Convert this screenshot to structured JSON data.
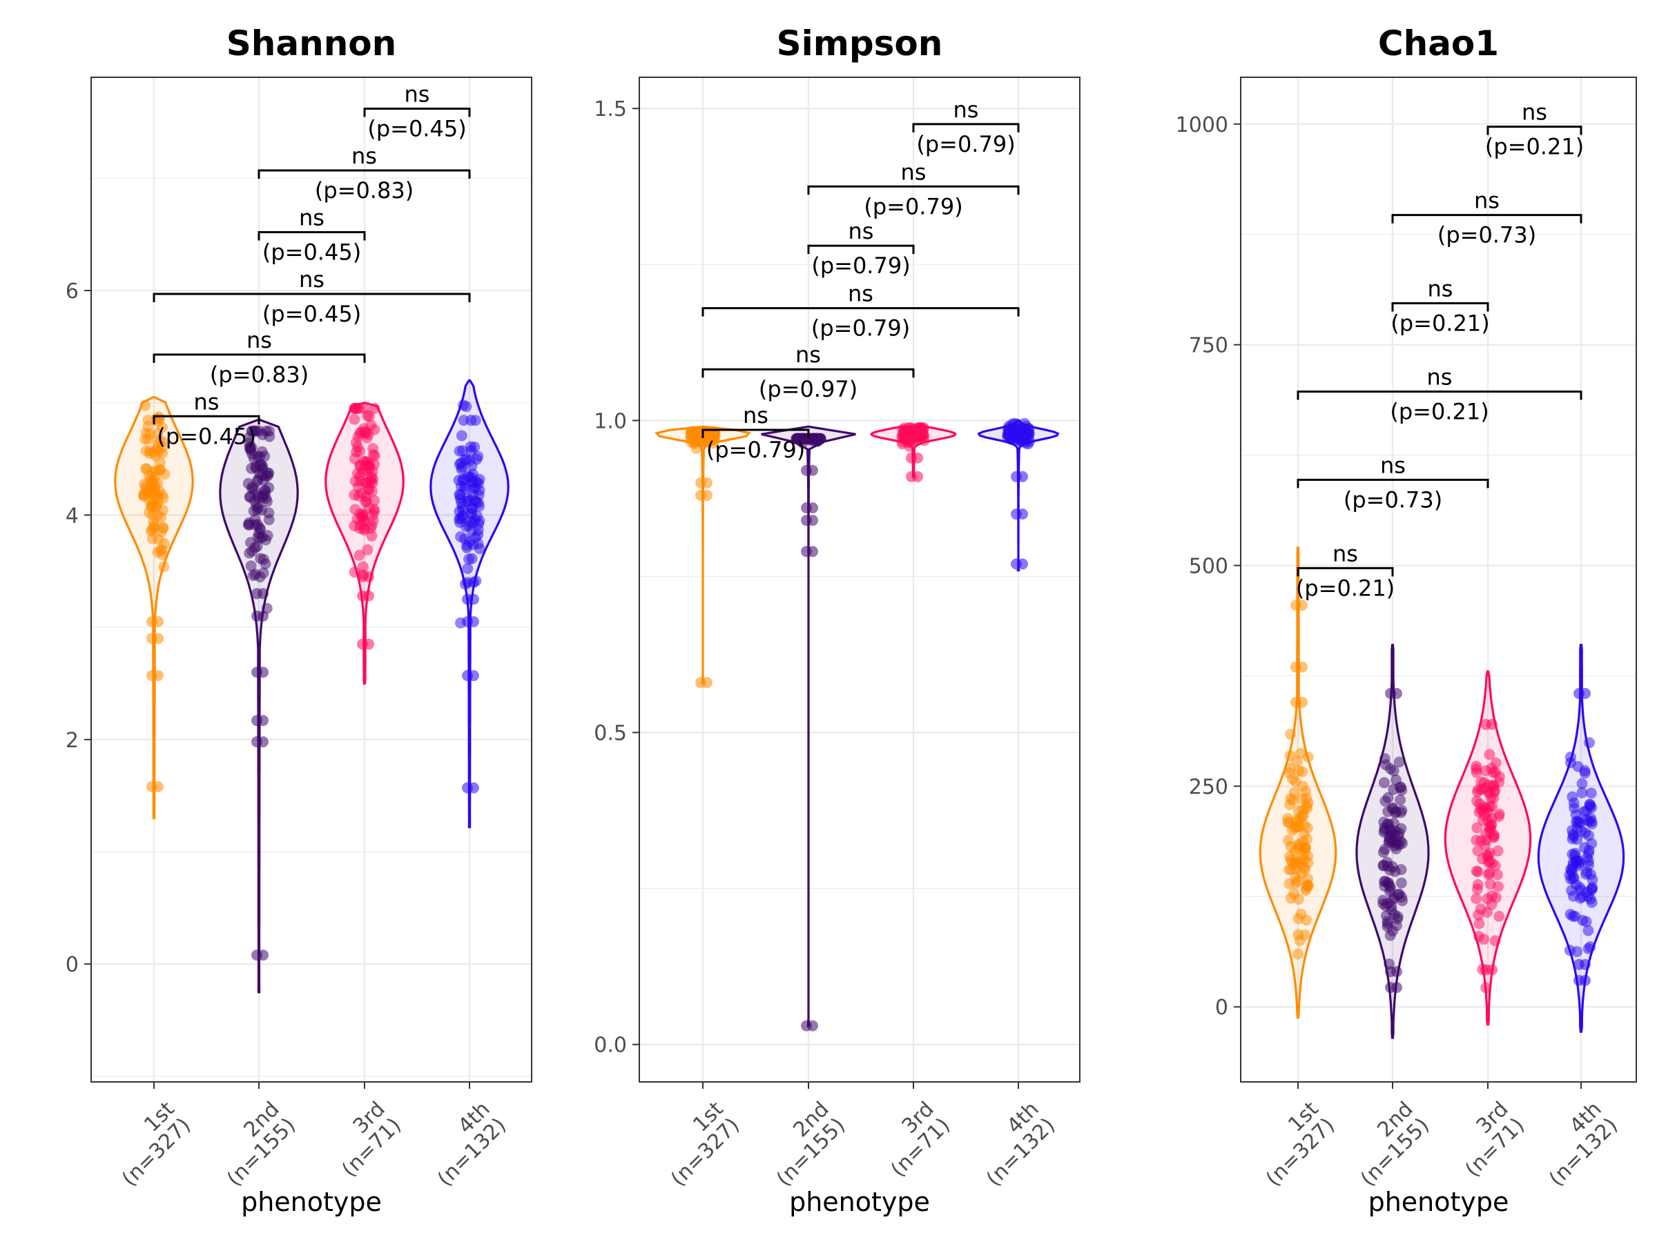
{
  "colors": {
    "1st (n=327)": "#FF8C00",
    "2nd (n=155)": "#3F0A6B",
    "3rd (n=71)": "#FF0A5A",
    "4th (n=132)": "#2A0AF0",
    "grid": "#EBEBEB",
    "border": "#333333"
  },
  "chart_data": [
    {
      "type": "violin",
      "title": "Shannon",
      "xlabel": "phenotype",
      "ylabel": "",
      "ylim": [
        -1.05,
        7.9
      ],
      "yticks": [
        0,
        2,
        4,
        6
      ],
      "categories": [
        {
          "line1": "1st",
          "line2": "(n=327)"
        },
        {
          "line1": "2nd",
          "line2": "(n=155)"
        },
        {
          "line1": "3rd",
          "line2": "(n=71)"
        },
        {
          "line1": "4th",
          "line2": "(n=132)"
        }
      ],
      "series": [
        {
          "min": 1.3,
          "max": 5.05,
          "center": 4.3,
          "spread": 0.45,
          "width": 0.37,
          "outliers": [
            1.58,
            2.57,
            2.9,
            3.05
          ]
        },
        {
          "min": -0.25,
          "max": 4.85,
          "center": 4.2,
          "spread": 0.5,
          "width": 0.37,
          "outliers": [
            0.08,
            1.98,
            2.17,
            2.6,
            3.1,
            3.3
          ]
        },
        {
          "min": 2.5,
          "max": 5.0,
          "center": 4.3,
          "spread": 0.45,
          "width": 0.37,
          "outliers": [
            2.85,
            3.28,
            3.45
          ]
        },
        {
          "min": 1.22,
          "max": 5.2,
          "center": 4.25,
          "spread": 0.42,
          "width": 0.37,
          "outliers": [
            1.57,
            2.57,
            3.05,
            3.25,
            3.4
          ]
        }
      ],
      "comparisons": [
        {
          "from": 0,
          "to": 1,
          "y": 4.88,
          "label": "ns",
          "p": "(p=0.45)"
        },
        {
          "from": 0,
          "to": 2,
          "y": 5.43,
          "label": "ns",
          "p": "(p=0.83)"
        },
        {
          "from": 0,
          "to": 3,
          "y": 5.97,
          "label": "ns",
          "p": "(p=0.45)"
        },
        {
          "from": 1,
          "to": 2,
          "y": 6.52,
          "label": "ns",
          "p": "(p=0.45)"
        },
        {
          "from": 1,
          "to": 3,
          "y": 7.07,
          "label": "ns",
          "p": "(p=0.83)"
        },
        {
          "from": 2,
          "to": 3,
          "y": 7.62,
          "label": "ns",
          "p": "(p=0.45)"
        }
      ]
    },
    {
      "type": "violin",
      "title": "Simpson",
      "xlabel": "phenotype",
      "ylabel": "",
      "ylim": [
        -0.06,
        1.55
      ],
      "yticks": [
        0.0,
        0.5,
        1.0,
        1.5
      ],
      "yticklabels": [
        "0.0",
        "0.5",
        "1.0",
        "1.5"
      ],
      "categories": [
        {
          "line1": "1st",
          "line2": "(n=327)"
        },
        {
          "line1": "2nd",
          "line2": "(n=155)"
        },
        {
          "line1": "3rd",
          "line2": "(n=71)"
        },
        {
          "line1": "4th",
          "line2": "(n=132)"
        }
      ],
      "series": [
        {
          "min": 0.58,
          "max": 0.99,
          "center": 0.978,
          "spread": 0.008,
          "width": 0.45,
          "outliers": [
            0.58,
            0.88,
            0.9
          ]
        },
        {
          "min": 0.03,
          "max": 0.99,
          "center": 0.978,
          "spread": 0.008,
          "width": 0.45,
          "outliers": [
            0.03,
            0.79,
            0.84,
            0.86,
            0.92
          ]
        },
        {
          "min": 0.91,
          "max": 0.99,
          "center": 0.978,
          "spread": 0.008,
          "width": 0.4,
          "outliers": [
            0.91,
            0.94
          ]
        },
        {
          "min": 0.76,
          "max": 1.0,
          "center": 0.978,
          "spread": 0.008,
          "width": 0.38,
          "outliers": [
            0.77,
            0.85,
            0.91
          ]
        }
      ],
      "comparisons": [
        {
          "from": 0,
          "to": 1,
          "y": 0.985,
          "label": "ns",
          "p": "(p=0.79)"
        },
        {
          "from": 0,
          "to": 2,
          "y": 1.082,
          "label": "ns",
          "p": "(p=0.97)"
        },
        {
          "from": 0,
          "to": 3,
          "y": 1.18,
          "label": "ns",
          "p": "(p=0.79)"
        },
        {
          "from": 1,
          "to": 2,
          "y": 1.28,
          "label": "ns",
          "p": "(p=0.79)"
        },
        {
          "from": 1,
          "to": 3,
          "y": 1.375,
          "label": "ns",
          "p": "(p=0.79)"
        },
        {
          "from": 2,
          "to": 3,
          "y": 1.475,
          "label": "ns",
          "p": "(p=0.79)"
        }
      ]
    },
    {
      "type": "violin",
      "title": "Chao1",
      "xlabel": "phenotype",
      "ylabel": "",
      "ylim": [
        -85,
        1053
      ],
      "yticks": [
        0,
        250,
        500,
        750,
        1000
      ],
      "categories": [
        {
          "line1": "1st",
          "line2": "(n=327)"
        },
        {
          "line1": "2nd",
          "line2": "(n=155)"
        },
        {
          "line1": "3rd",
          "line2": "(n=71)"
        },
        {
          "line1": "4th",
          "line2": "(n=132)"
        }
      ],
      "series": [
        {
          "min": -12,
          "max": 520,
          "center": 175,
          "spread": 65,
          "width": 0.4,
          "outliers": [
            455,
            385,
            345
          ]
        },
        {
          "min": -35,
          "max": 410,
          "center": 175,
          "spread": 70,
          "width": 0.38,
          "outliers": [
            22,
            40,
            355
          ]
        },
        {
          "min": -20,
          "max": 380,
          "center": 190,
          "spread": 70,
          "width": 0.45,
          "outliers": [
            42,
            320
          ]
        },
        {
          "min": -28,
          "max": 410,
          "center": 170,
          "spread": 65,
          "width": 0.45,
          "outliers": [
            30,
            48,
            355
          ]
        }
      ],
      "comparisons": [
        {
          "from": 0,
          "to": 1,
          "y": 497,
          "label": "ns",
          "p": "(p=0.21)"
        },
        {
          "from": 0,
          "to": 2,
          "y": 597,
          "label": "ns",
          "p": "(p=0.73)"
        },
        {
          "from": 0,
          "to": 3,
          "y": 697,
          "label": "ns",
          "p": "(p=0.21)"
        },
        {
          "from": 1,
          "to": 2,
          "y": 797,
          "label": "ns",
          "p": "(p=0.21)"
        },
        {
          "from": 1,
          "to": 3,
          "y": 897,
          "label": "ns",
          "p": "(p=0.73)"
        },
        {
          "from": 2,
          "to": 3,
          "y": 997,
          "label": "ns",
          "p": "(p=0.21)"
        }
      ]
    }
  ]
}
